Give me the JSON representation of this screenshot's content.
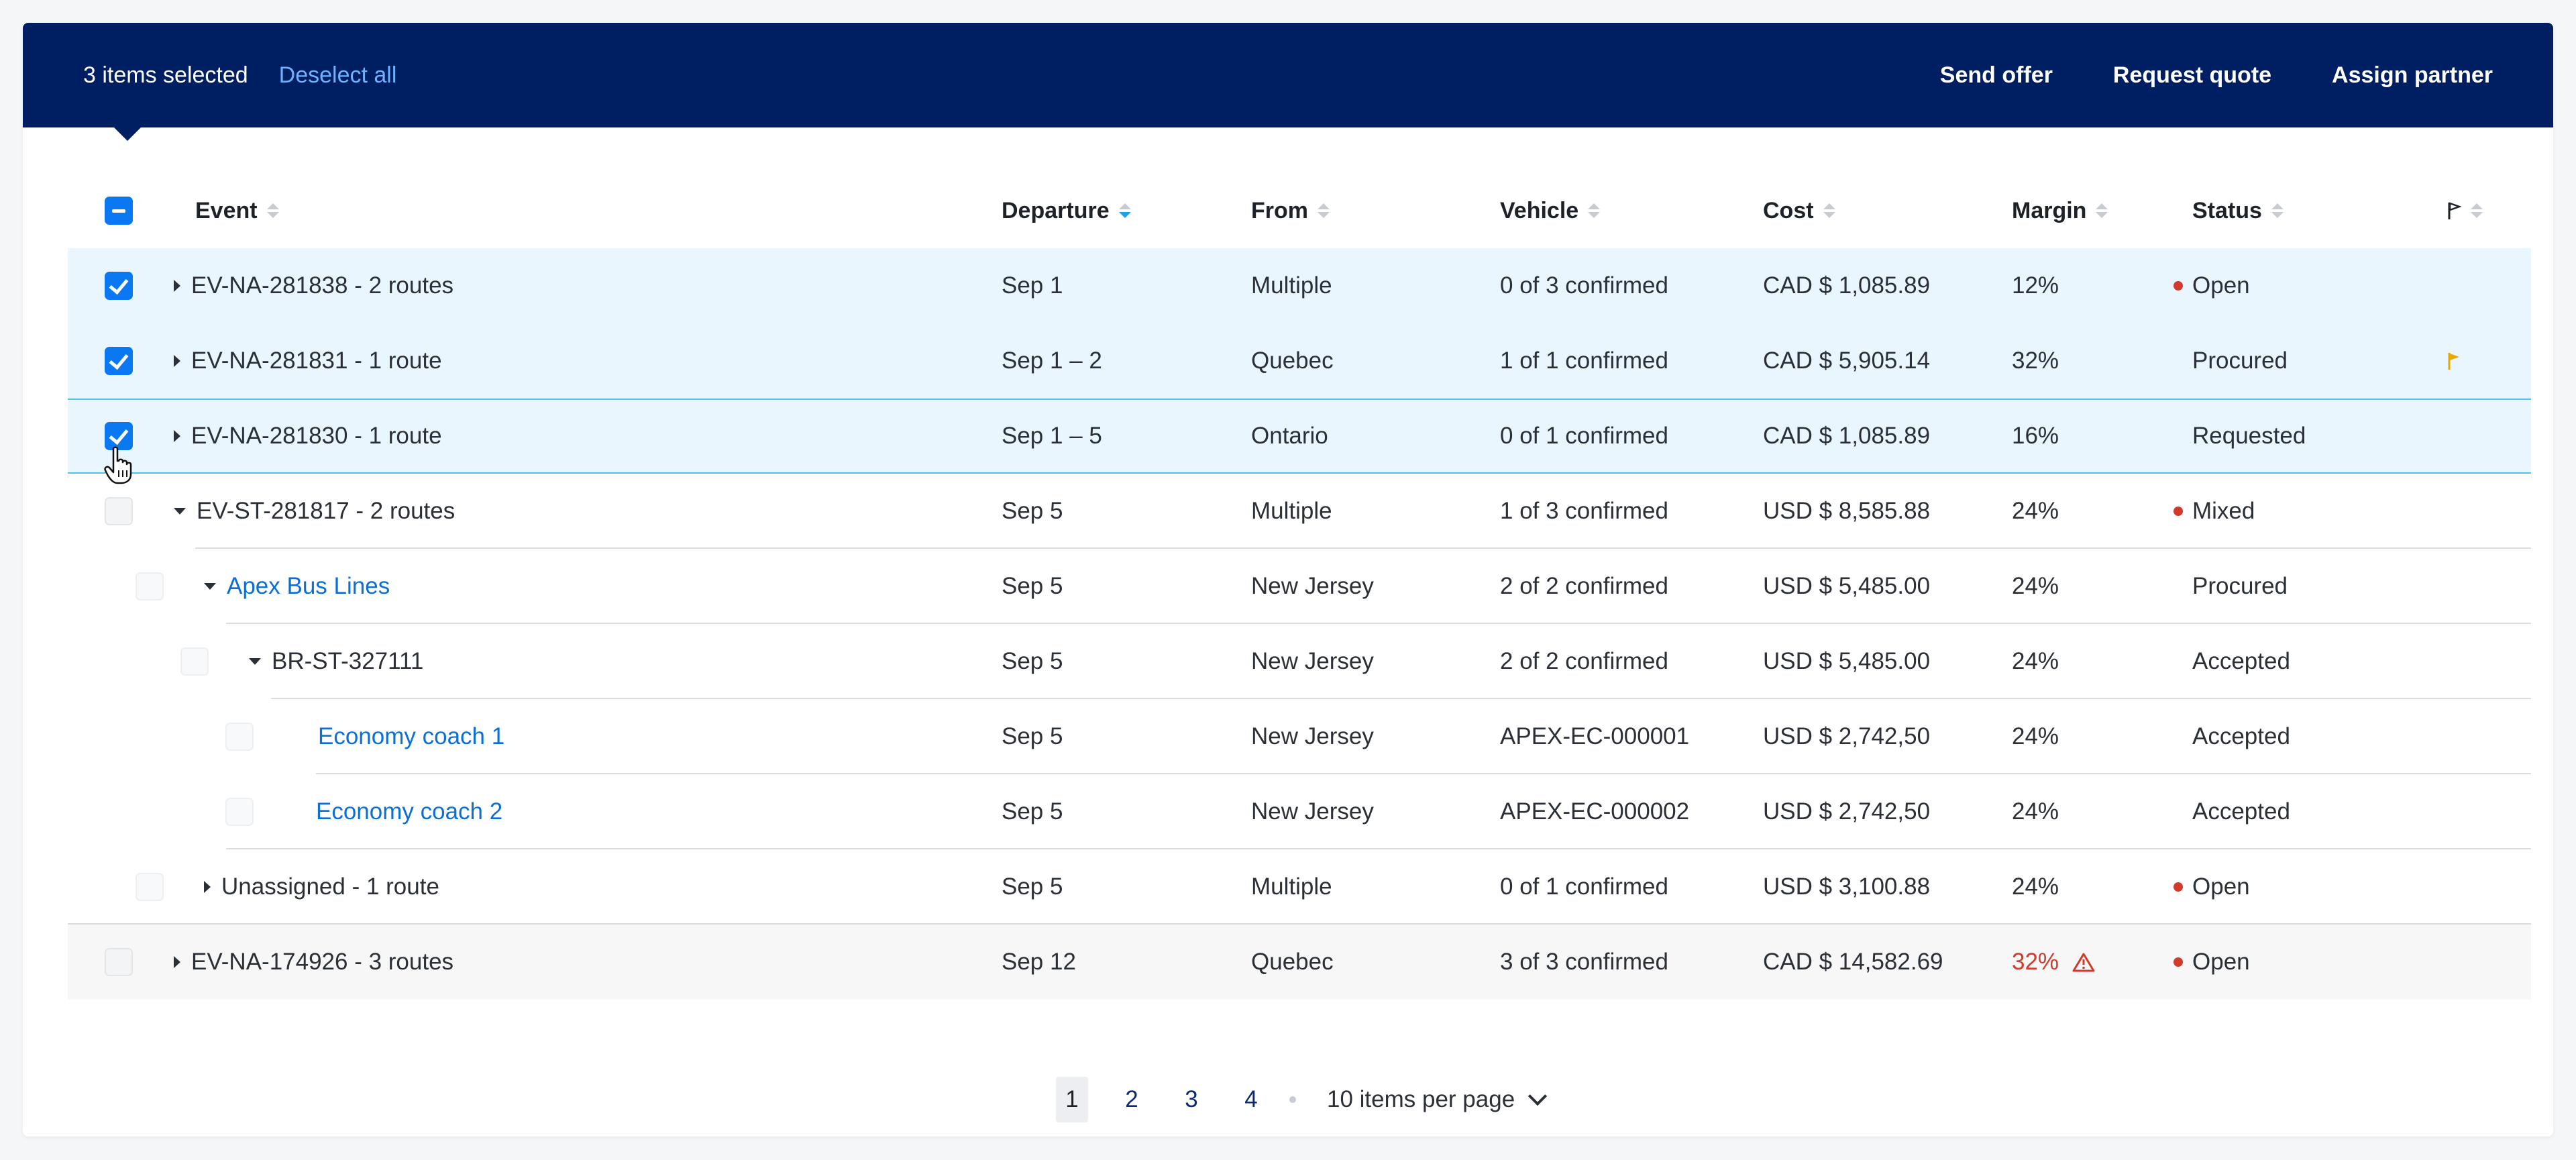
{
  "selection_bar": {
    "count_text": "3 items selected",
    "deselect_label": "Deselect all",
    "actions": [
      "Send offer",
      "Request quote",
      "Assign partner"
    ]
  },
  "columns": [
    "Event",
    "Departure",
    "From",
    "Vehicle",
    "Cost",
    "Margin",
    "Status"
  ],
  "rows": [
    {
      "event": "EV-NA-281838 - 2 routes",
      "departure": "Sep 1",
      "from": "Multiple",
      "vehicle": "0 of 3 confirmed",
      "cost": "CAD $ 1,085.89",
      "margin": "12%",
      "status": "Open"
    },
    {
      "event": "EV-NA-281831 - 1 route",
      "departure": "Sep 1 – 2",
      "from": "Quebec",
      "vehicle": "1 of 1 confirmed",
      "cost": "CAD $ 5,905.14",
      "margin": "32%",
      "status": "Procured"
    },
    {
      "event": "EV-NA-281830 - 1 route",
      "departure": "Sep 1 – 5",
      "from": "Ontario",
      "vehicle": "0 of 1 confirmed",
      "cost": "CAD $ 1,085.89",
      "margin": "16%",
      "status": "Requested"
    },
    {
      "event": "EV-ST-281817 - 2 routes",
      "departure": "Sep 5",
      "from": "Multiple",
      "vehicle": "1 of 3 confirmed",
      "cost": "USD $ 8,585.88",
      "margin": "24%",
      "status": "Mixed"
    },
    {
      "event": "Apex Bus Lines",
      "departure": "Sep 5",
      "from": "New Jersey",
      "vehicle": "2 of 2 confirmed",
      "cost": "USD $ 5,485.00",
      "margin": "24%",
      "status": "Procured"
    },
    {
      "event": "BR-ST-327111",
      "departure": "Sep 5",
      "from": "New Jersey",
      "vehicle": "2 of 2 confirmed",
      "cost": "USD $ 5,485.00",
      "margin": "24%",
      "status": "Accepted"
    },
    {
      "event": "Economy coach 1",
      "departure": "Sep 5",
      "from": "New Jersey",
      "vehicle": "APEX-EC-000001",
      "cost": "USD $ 2,742,50",
      "margin": "24%",
      "status": "Accepted"
    },
    {
      "event": "Economy coach 2",
      "departure": "Sep 5",
      "from": "New Jersey",
      "vehicle": "APEX-EC-000002",
      "cost": "USD $ 2,742,50",
      "margin": "24%",
      "status": "Accepted"
    },
    {
      "event": "Unassigned - 1 route",
      "departure": "Sep 5",
      "from": "Multiple",
      "vehicle": "0 of 1 confirmed",
      "cost": "USD $ 3,100.88",
      "margin": "24%",
      "status": "Open"
    },
    {
      "event": "EV-NA-174926 - 3 routes",
      "departure": "Sep 12",
      "from": "Quebec",
      "vehicle": "3 of 3 confirmed",
      "cost": "CAD $ 14,582.69",
      "margin": "32%",
      "status": "Open"
    }
  ],
  "pagination": {
    "pages": [
      "1",
      "2",
      "3",
      "4"
    ],
    "current": "1",
    "per_page_label": "10 items per page"
  },
  "colors": {
    "bar": "#001f63",
    "link": "#0b6fd6",
    "checkbox": "#0a78f0",
    "alert": "#d33a2c",
    "flag": "#e8a800",
    "selected_row": "#eaf6fd"
  }
}
